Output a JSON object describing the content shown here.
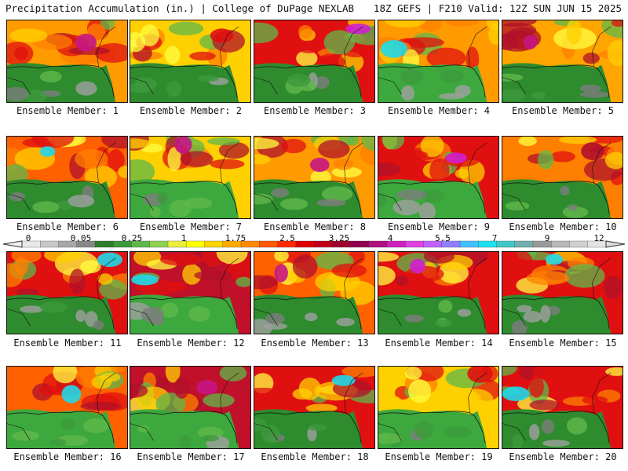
{
  "header": {
    "left": "Precipitation Accumulation (in.) | College of DuPage NEXLAB",
    "right": "18Z GEFS | F210 Valid: 12Z SUN JUN 15 2025"
  },
  "panels": [
    {
      "label": "Ensemble Member: 1",
      "top": "#ff9a00",
      "bot": "#2e8b2e",
      "blob": "#c71585"
    },
    {
      "label": "Ensemble Member: 2",
      "top": "#ffd000",
      "bot": "#2e8b2e",
      "blob": "#e01010"
    },
    {
      "label": "Ensemble Member: 3",
      "top": "#e01010",
      "bot": "#2e8b2e",
      "blob": "#d020d0"
    },
    {
      "label": "Ensemble Member: 4",
      "top": "#ff9a00",
      "bot": "#3da83d",
      "blob": "#20d8e8"
    },
    {
      "label": "Ensemble Member: 5",
      "top": "#ffa500",
      "bot": "#2e8b2e",
      "blob": "#c71585"
    },
    {
      "label": "Ensemble Member: 6",
      "top": "#ff6000",
      "bot": "#2e8b2e",
      "blob": "#20d8e8"
    },
    {
      "label": "Ensemble Member: 7",
      "top": "#ffd000",
      "bot": "#3da83d",
      "blob": "#c71585"
    },
    {
      "label": "Ensemble Member: 8",
      "top": "#ff9a00",
      "bot": "#2e8b2e",
      "blob": "#c71585"
    },
    {
      "label": "Ensemble Member: 9",
      "top": "#e01010",
      "bot": "#3da83d",
      "blob": "#d020d0"
    },
    {
      "label": "Ensemble Member: 10",
      "top": "#ff8000",
      "bot": "#2e8b2e",
      "blob": "#b0102a"
    },
    {
      "label": "Ensemble Member: 11",
      "top": "#e01010",
      "bot": "#2e8b2e",
      "blob": "#20d8e8"
    },
    {
      "label": "Ensemble Member: 12",
      "top": "#c0102a",
      "bot": "#3da83d",
      "blob": "#20d8e8"
    },
    {
      "label": "Ensemble Member: 13",
      "top": "#ff6000",
      "bot": "#2e8b2e",
      "blob": "#c71585"
    },
    {
      "label": "Ensemble Member: 14",
      "top": "#e01010",
      "bot": "#2e8b2e",
      "blob": "#d020d0"
    },
    {
      "label": "Ensemble Member: 15",
      "top": "#e01010",
      "bot": "#2e8b2e",
      "blob": "#20d8e8"
    },
    {
      "label": "Ensemble Member: 16",
      "top": "#ff6000",
      "bot": "#3da83d",
      "blob": "#20d8e8"
    },
    {
      "label": "Ensemble Member: 17",
      "top": "#c0102a",
      "bot": "#3da83d",
      "blob": "#c71585"
    },
    {
      "label": "Ensemble Member: 18",
      "top": "#e01010",
      "bot": "#2e8b2e",
      "blob": "#20d8e8"
    },
    {
      "label": "Ensemble Member: 19",
      "top": "#ffd000",
      "bot": "#3da83d",
      "blob": "#e01010"
    },
    {
      "label": "Ensemble Member: 20",
      "top": "#e01010",
      "bot": "#2e8b2e",
      "blob": "#20d8e8"
    }
  ],
  "scale": {
    "ticks": [
      "0",
      "0.05",
      "0.25",
      "1",
      "1.75",
      "2.5",
      "3.25",
      "4",
      "5.5",
      "7",
      "9",
      "12"
    ],
    "colors": [
      "#e8e8e8",
      "#c8c8c8",
      "#a8a8a8",
      "#888888",
      "#2e7d2e",
      "#3c9a3c",
      "#5fb84a",
      "#8fd14f",
      "#e8f03c",
      "#ffff00",
      "#ffd400",
      "#ffaa00",
      "#ff8800",
      "#ff5a00",
      "#ff2a00",
      "#e00000",
      "#c00018",
      "#a00030",
      "#900050",
      "#b01080",
      "#d020c0",
      "#e040e0",
      "#c060ff",
      "#9080ff",
      "#40c0ff",
      "#20e0f0",
      "#40c8c8",
      "#70b0b0",
      "#9a9a9a",
      "#b8b8b8",
      "#d0d0d0",
      "#e4e4e4"
    ]
  }
}
